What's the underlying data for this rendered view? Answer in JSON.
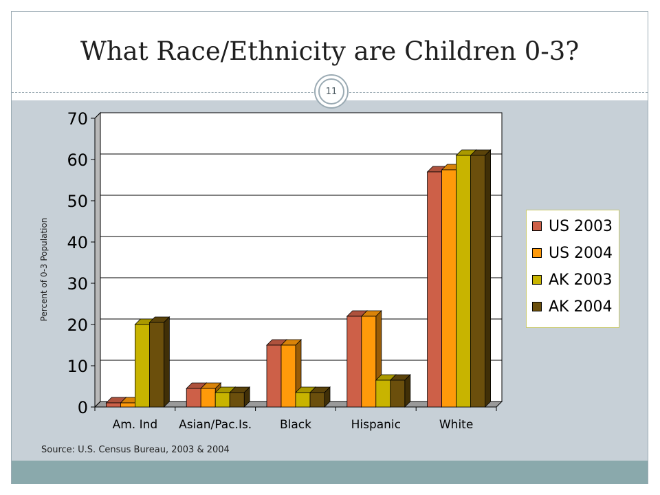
{
  "slide": {
    "title": "What Race/Ethnicity are Children 0-3?",
    "page_number": "11",
    "source": "Source: U.S. Census Bureau, 2003 & 2004"
  },
  "colors": {
    "US 2003": "#cd6048",
    "US 2004": "#ff9a0a",
    "AK 2003": "#c8b400",
    "AK 2004": "#6b4f0c"
  },
  "chart_data": {
    "type": "bar",
    "title": "",
    "xlabel": "",
    "ylabel": "Percent of 0-3 Population",
    "ylim": [
      0,
      70
    ],
    "yticks": [
      0,
      10,
      20,
      30,
      40,
      50,
      60,
      70
    ],
    "grid": true,
    "legend_position": "right",
    "categories": [
      "Am. Ind",
      "Asian/Pac.Is.",
      "Black",
      "Hispanic",
      "White"
    ],
    "series": [
      {
        "name": "US 2003",
        "values": [
          1,
          4.5,
          15,
          22,
          57
        ]
      },
      {
        "name": "US 2004",
        "values": [
          1,
          4.5,
          15,
          22,
          57.5
        ]
      },
      {
        "name": "AK 2003",
        "values": [
          20,
          3.5,
          3.5,
          6.5,
          61
        ]
      },
      {
        "name": "AK 2004",
        "values": [
          20.5,
          3.5,
          3.5,
          6.5,
          61
        ]
      }
    ]
  }
}
